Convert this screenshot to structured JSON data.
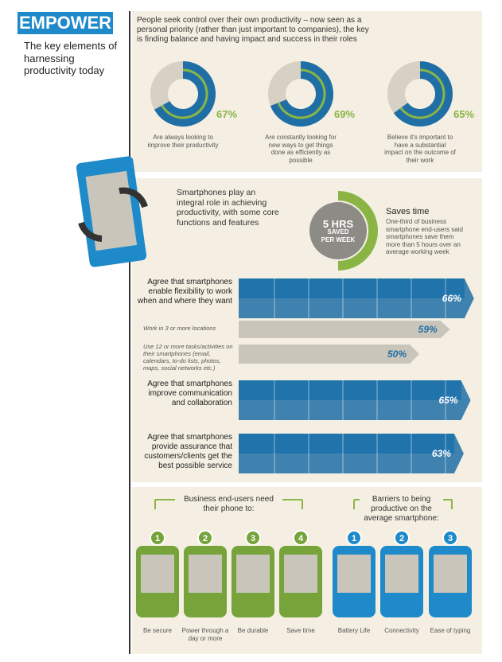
{
  "header": {
    "tag": "EMPOWER",
    "subtitle": "The key elements of harnessing productivity today"
  },
  "intro": "People seek control over their own productivity – now seen as a personal priority (rather than just important to companies), the key is finding balance and having impact and success in their roles",
  "donuts": [
    {
      "value": 67,
      "label": "67%",
      "caption": "Are always looking to improve their productivity"
    },
    {
      "value": 69,
      "label": "69%",
      "caption": "Are constantly looking for new ways to get things done as efficiently as possible"
    },
    {
      "value": 65,
      "label": "65%",
      "caption": "Believe it's important to have a substantial impact on the outcome of their work"
    }
  ],
  "smartphones": {
    "text": "Smartphones play an integral role in achieving productivity, with some core functions and features",
    "badge": [
      "5 HRS",
      "SAVED",
      "PER WEEK"
    ],
    "saves_title": "Saves time",
    "saves_text": "One-third of business smartphone end-users said smartphones save them more than 5 hours over an average working week"
  },
  "bars": [
    {
      "label": "Agree that smartphones enable flexibility to work when and where they want",
      "value": 66,
      "value_label": "66%",
      "style": "major"
    },
    {
      "label": "Work in 3 or more locations",
      "value": 59,
      "value_label": "59%",
      "style": "minor"
    },
    {
      "label": "Use 12 or more tasks/activities on their smartphones (email, calendars, to-do lists, photos, maps, social networks etc.)",
      "value": 50,
      "value_label": "50%",
      "style": "minor"
    },
    {
      "label": "Agree that smartphones improve communication and collaboration",
      "value": 65,
      "value_label": "65%",
      "style": "major"
    },
    {
      "label": "Agree that smartphones provide assurance that customers/clients get the best possible service",
      "value": 63,
      "value_label": "63%",
      "style": "major"
    }
  ],
  "needs": {
    "title": "Business end-users need their phone to:",
    "items": [
      {
        "number": "1",
        "label": "Be secure"
      },
      {
        "number": "2",
        "label": "Power through a day or more"
      },
      {
        "number": "3",
        "label": "Be durable"
      },
      {
        "number": "4",
        "label": "Save time"
      }
    ]
  },
  "barriers": {
    "title": "Barriers to being productive on the average smartphone:",
    "items": [
      {
        "number": "1",
        "label": "Battery Life"
      },
      {
        "number": "2",
        "label": "Connectivity"
      },
      {
        "number": "3",
        "label": "Ease of typing"
      }
    ]
  }
}
